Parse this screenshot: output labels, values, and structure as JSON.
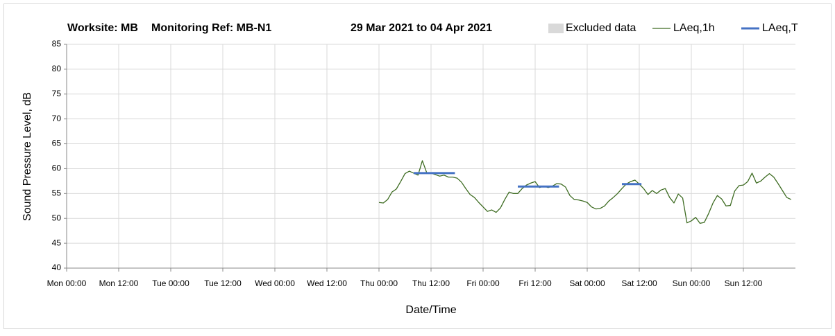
{
  "chart_data": {
    "type": "line",
    "title": [
      "Worksite: MB",
      "Monitoring Ref: MB-N1",
      "29 Mar 2021 to 04 Apr 2021"
    ],
    "x_label": "Date/Time",
    "y_label": "Sound Pressure Level, dB",
    "xlim": [
      0,
      168
    ],
    "xticks": [
      {
        "value": 0,
        "label": "Mon 00:00"
      },
      {
        "value": 12,
        "label": "Mon 12:00"
      },
      {
        "value": 24,
        "label": "Tue 00:00"
      },
      {
        "value": 36,
        "label": "Tue 12:00"
      },
      {
        "value": 48,
        "label": "Wed 00:00"
      },
      {
        "value": 60,
        "label": "Wed 12:00"
      },
      {
        "value": 72,
        "label": "Thu 00:00"
      },
      {
        "value": 84,
        "label": "Thu 12:00"
      },
      {
        "value": 96,
        "label": "Fri 00:00"
      },
      {
        "value": 108,
        "label": "Fri 12:00"
      },
      {
        "value": 120,
        "label": "Sat 00:00"
      },
      {
        "value": 132,
        "label": "Sat 12:00"
      },
      {
        "value": 144,
        "label": "Sun 00:00"
      },
      {
        "value": 156,
        "label": "Sun 12:00"
      }
    ],
    "ylim": [
      40,
      85
    ],
    "yticks": [
      40,
      45,
      50,
      55,
      60,
      65,
      70,
      75,
      80,
      85
    ],
    "grid": true,
    "series": [
      {
        "name": "Excluded data",
        "color": "#d9d9d9",
        "style": "area",
        "x": [],
        "values": []
      },
      {
        "name": "LAeq,1h",
        "color": "#3d6b21",
        "style": "thin",
        "x": [
          72,
          73,
          74,
          75,
          76,
          77,
          78,
          79,
          80,
          81,
          82,
          83,
          84,
          85,
          86,
          87,
          88,
          89,
          90,
          91,
          92,
          93,
          94,
          95,
          96,
          97,
          98,
          99,
          100,
          101,
          102,
          103,
          104,
          105,
          106,
          107,
          108,
          109,
          110,
          111,
          112,
          113,
          114,
          115,
          116,
          117,
          118,
          119,
          120,
          121,
          122,
          123,
          124,
          125,
          126,
          127,
          128,
          129,
          130,
          131,
          132,
          133,
          134,
          135,
          136,
          137,
          138,
          139,
          140,
          141,
          142,
          143,
          144,
          145,
          146,
          147,
          148,
          149,
          150,
          151,
          152,
          153,
          154,
          155,
          156,
          157,
          158,
          159,
          160,
          161,
          162,
          163,
          164,
          165,
          166,
          167
        ],
        "values": [
          53.2,
          53.1,
          53.8,
          55.3,
          55.9,
          57.4,
          59.0,
          59.5,
          59.1,
          58.7,
          61.6,
          59.2,
          59.1,
          58.8,
          58.5,
          58.7,
          58.3,
          58.3,
          58.1,
          57.3,
          56.0,
          54.8,
          54.2,
          53.2,
          52.3,
          51.4,
          51.7,
          51.2,
          52.1,
          53.8,
          55.3,
          55.0,
          55.0,
          56.0,
          56.7,
          57.1,
          57.4,
          56.2,
          56.5,
          56.2,
          56.5,
          57.0,
          56.9,
          56.3,
          54.6,
          53.8,
          53.7,
          53.5,
          53.2,
          52.3,
          51.9,
          52.0,
          52.5,
          53.5,
          54.2,
          55.0,
          56.0,
          56.9,
          57.4,
          57.7,
          56.9,
          56.0,
          54.8,
          55.6,
          55.0,
          55.7,
          56.0,
          54.2,
          53.1,
          54.9,
          54.1,
          49.1,
          49.5,
          50.2,
          49.0,
          49.2,
          51.0,
          53.1,
          54.6,
          53.9,
          52.5,
          52.6,
          55.5,
          56.6,
          56.7,
          57.4,
          59.1,
          57.1,
          57.5,
          58.3,
          59.0,
          58.3,
          57.0,
          55.6,
          54.2,
          53.8
        ]
      },
      {
        "name": "LAeq,T",
        "color": "#4472c4",
        "style": "thick",
        "x": [
          80,
          89.5,
          null,
          104,
          113.5,
          null,
          128,
          132.5
        ],
        "values": [
          59.1,
          59.1,
          null,
          56.4,
          56.4,
          null,
          56.9,
          56.9
        ]
      }
    ]
  }
}
